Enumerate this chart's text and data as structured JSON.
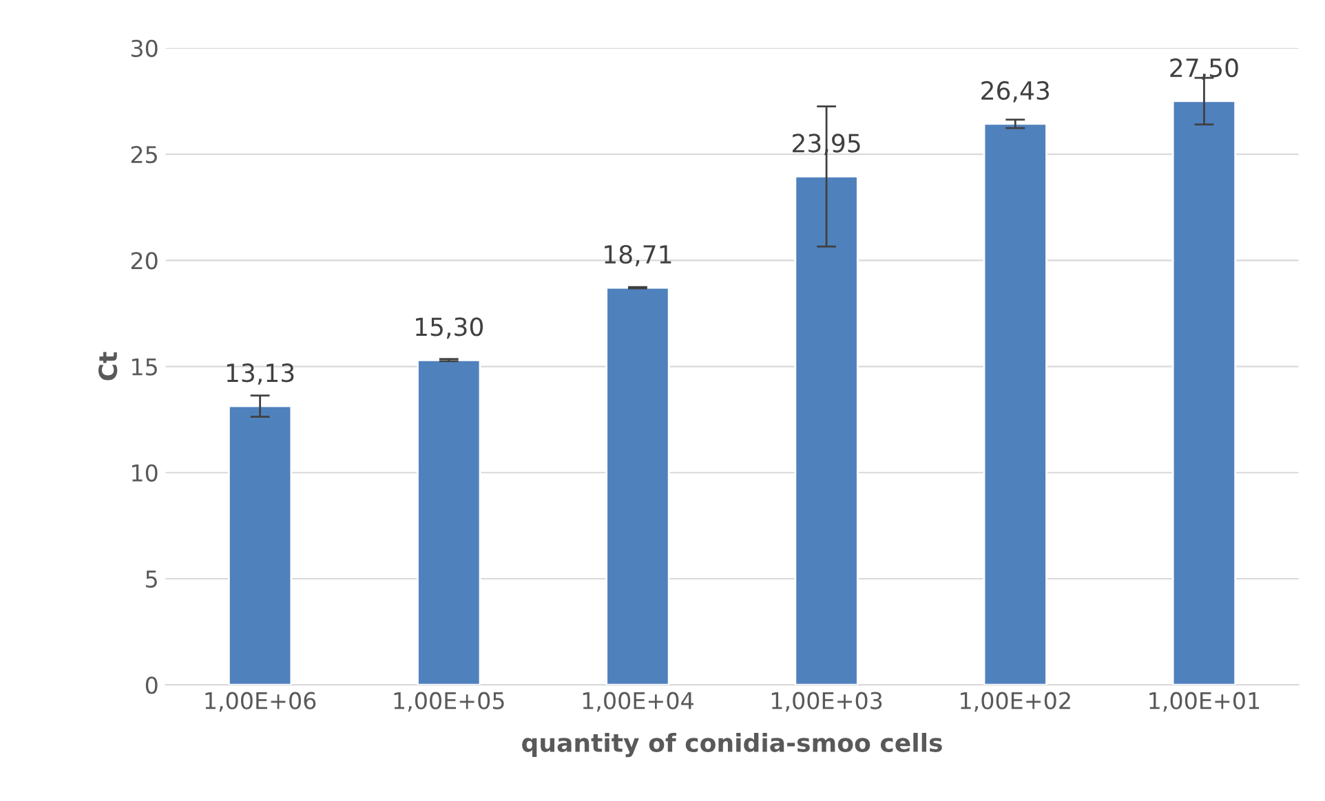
{
  "chart_data": {
    "type": "bar",
    "xlabel": "quantity of conidia-smoo cells",
    "ylabel": "Ct",
    "categories": [
      "1,00E+06",
      "1,00E+05",
      "1,00E+04",
      "1,00E+03",
      "1,00E+02",
      "1,00E+01"
    ],
    "values": [
      13.13,
      15.3,
      18.71,
      23.95,
      26.43,
      27.5
    ],
    "value_labels": [
      "13,13",
      "15,30",
      "18,71",
      "23,95",
      "26,43",
      "27,50"
    ],
    "errors": [
      0.5,
      0.05,
      0.03,
      3.3,
      0.2,
      1.1
    ],
    "color": "#4f81bd",
    "ylim": [
      0,
      30
    ],
    "yticks": [
      0,
      5,
      10,
      15,
      20,
      25,
      30
    ],
    "grid": "y"
  }
}
